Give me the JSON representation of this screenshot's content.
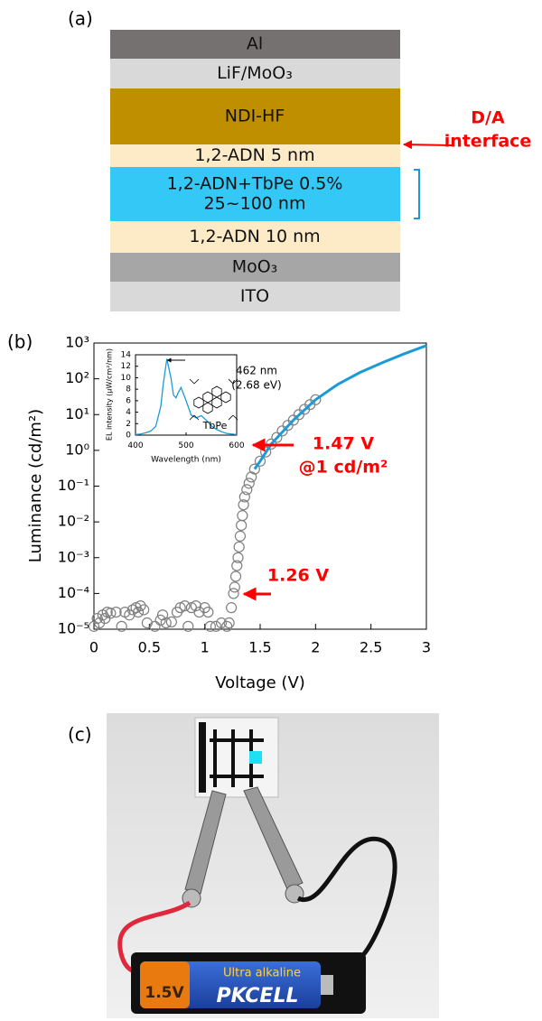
{
  "panel_a": {
    "label": "(a)",
    "layers": [
      {
        "lines": [
          "Al"
        ],
        "color": "#767171"
      },
      {
        "lines": [
          "LiF/MoO₃"
        ],
        "color": "#d9d9d9"
      },
      {
        "lines": [
          "NDI-HF"
        ],
        "color": "#bf8f00"
      },
      {
        "lines": [
          "1,2-ADN 5 nm"
        ],
        "color": "#fdebc8"
      },
      {
        "lines": [
          "1,2-ADN+TbPe 0.5%",
          "25~100 nm"
        ],
        "color": "#33c8f5"
      },
      {
        "lines": [
          "1,2-ADN 10 nm"
        ],
        "color": "#fdebc8"
      },
      {
        "lines": [
          "MoO₃"
        ],
        "color": "#a6a6a6"
      },
      {
        "lines": [
          "ITO"
        ],
        "color": "#d9d9d9"
      }
    ],
    "annotation": [
      "D/A",
      "interface"
    ],
    "annotation_color": "#ff0000"
  },
  "panel_b_label": "(b)",
  "chart_data": [
    {
      "type": "scatter",
      "xlabel": "Voltage (V)",
      "ylabel": "Luminance (cd/m²)",
      "xlim": [
        0,
        3
      ],
      "ylim": [
        1e-05,
        1000
      ],
      "log_y": true,
      "xticks": [
        0,
        0.5,
        1,
        1.5,
        2,
        2.5,
        3
      ],
      "yticks": [
        {
          "value": 1e-05,
          "label": "10⁻⁵"
        },
        {
          "value": 0.0001,
          "label": "10⁻⁴"
        },
        {
          "value": 0.001,
          "label": "10⁻³"
        },
        {
          "value": 0.01,
          "label": "10⁻²"
        },
        {
          "value": 0.1,
          "label": "10⁻¹"
        },
        {
          "value": 1,
          "label": "10⁰"
        },
        {
          "value": 10,
          "label": "10¹"
        },
        {
          "value": 100,
          "label": "10²"
        },
        {
          "value": 1000,
          "label": "10³"
        }
      ],
      "series": [
        {
          "marker": "open-circle",
          "color": "#7f7f7f",
          "x": [
            0,
            0.03,
            0.05,
            0.08,
            0.1,
            0.12,
            0.15,
            0.2,
            0.25,
            0.28,
            0.32,
            0.35,
            0.38,
            0.4,
            0.42,
            0.45,
            0.48,
            0.55,
            0.6,
            0.62,
            0.65,
            0.7,
            0.75,
            0.78,
            0.82,
            0.85,
            0.88,
            0.92,
            0.95,
            1,
            1.03,
            1.05,
            1.1,
            1.15,
            1.2,
            1.22,
            1.24,
            1.26,
            1.27,
            1.28,
            1.29,
            1.3,
            1.31,
            1.32,
            1.33,
            1.34,
            1.35,
            1.36,
            1.38,
            1.4,
            1.42,
            1.45,
            1.5,
            1.55,
            1.6,
            1.65,
            1.7,
            1.75,
            1.8,
            1.85,
            1.9,
            1.95,
            2
          ],
          "values": [
            1.2e-05,
            2e-05,
            1.5e-05,
            2.5e-05,
            2e-05,
            3e-05,
            2.8e-05,
            3e-05,
            1.2e-05,
            3e-05,
            2.5e-05,
            3.5e-05,
            4e-05,
            3e-05,
            4.5e-05,
            3.5e-05,
            1.5e-05,
            1.2e-05,
            1.8e-05,
            2.5e-05,
            1.5e-05,
            1.6e-05,
            3e-05,
            4e-05,
            4.5e-05,
            1.2e-05,
            4e-05,
            4.5e-05,
            3e-05,
            4e-05,
            3e-05,
            1.2e-05,
            1.2e-05,
            1.5e-05,
            1.2e-05,
            1.5e-05,
            4e-05,
            0.0001,
            0.00015,
            0.0003,
            0.0006,
            0.001,
            0.002,
            0.004,
            0.008,
            0.015,
            0.03,
            0.05,
            0.08,
            0.12,
            0.18,
            0.3,
            0.5,
            0.9,
            1.5,
            2.3,
            3.5,
            5,
            7,
            10,
            14,
            19,
            26
          ]
        },
        {
          "type": "line",
          "color": "#1a9bd7",
          "x": [
            1.45,
            1.5,
            1.6,
            1.8,
            2,
            2.2,
            2.4,
            2.6,
            2.8,
            3
          ],
          "values": [
            0.3,
            0.5,
            1.5,
            7,
            26,
            70,
            150,
            280,
            500,
            850
          ]
        }
      ],
      "annotations": [
        "1.47 V",
        "@1 cd/m²",
        "1.26 V"
      ],
      "annotation_color": "#ff0000"
    },
    {
      "type": "line",
      "xlabel": "Wavelength (nm)",
      "ylabel": "EL intensity (μW/cm²/nm)",
      "xlim": [
        400,
        600
      ],
      "ylim": [
        0,
        14
      ],
      "xticks": [
        400,
        500,
        600
      ],
      "yticks": [
        0,
        2,
        4,
        6,
        8,
        10,
        12,
        14
      ],
      "series": [
        {
          "color": "#1a9bd7",
          "x": [
            400,
            410,
            420,
            430,
            440,
            450,
            455,
            462,
            470,
            475,
            480,
            485,
            490,
            500,
            510,
            520,
            530,
            540,
            550,
            560,
            570,
            580,
            590,
            600
          ],
          "values": [
            0.1,
            0.2,
            0.4,
            0.7,
            1.5,
            5,
            9,
            13.3,
            10,
            7,
            6.5,
            7.5,
            8.3,
            6,
            3.5,
            3,
            3.4,
            2.6,
            1.6,
            1,
            0.6,
            0.3,
            0.2,
            0.1
          ]
        }
      ],
      "annotations": [
        "462 nm",
        "(2.68 eV)",
        "TbPe"
      ]
    }
  ],
  "panel_c": {
    "label": "(c)",
    "battery_texts": [
      "1.5V",
      "Ultra alkaline",
      "PKCELL"
    ]
  }
}
